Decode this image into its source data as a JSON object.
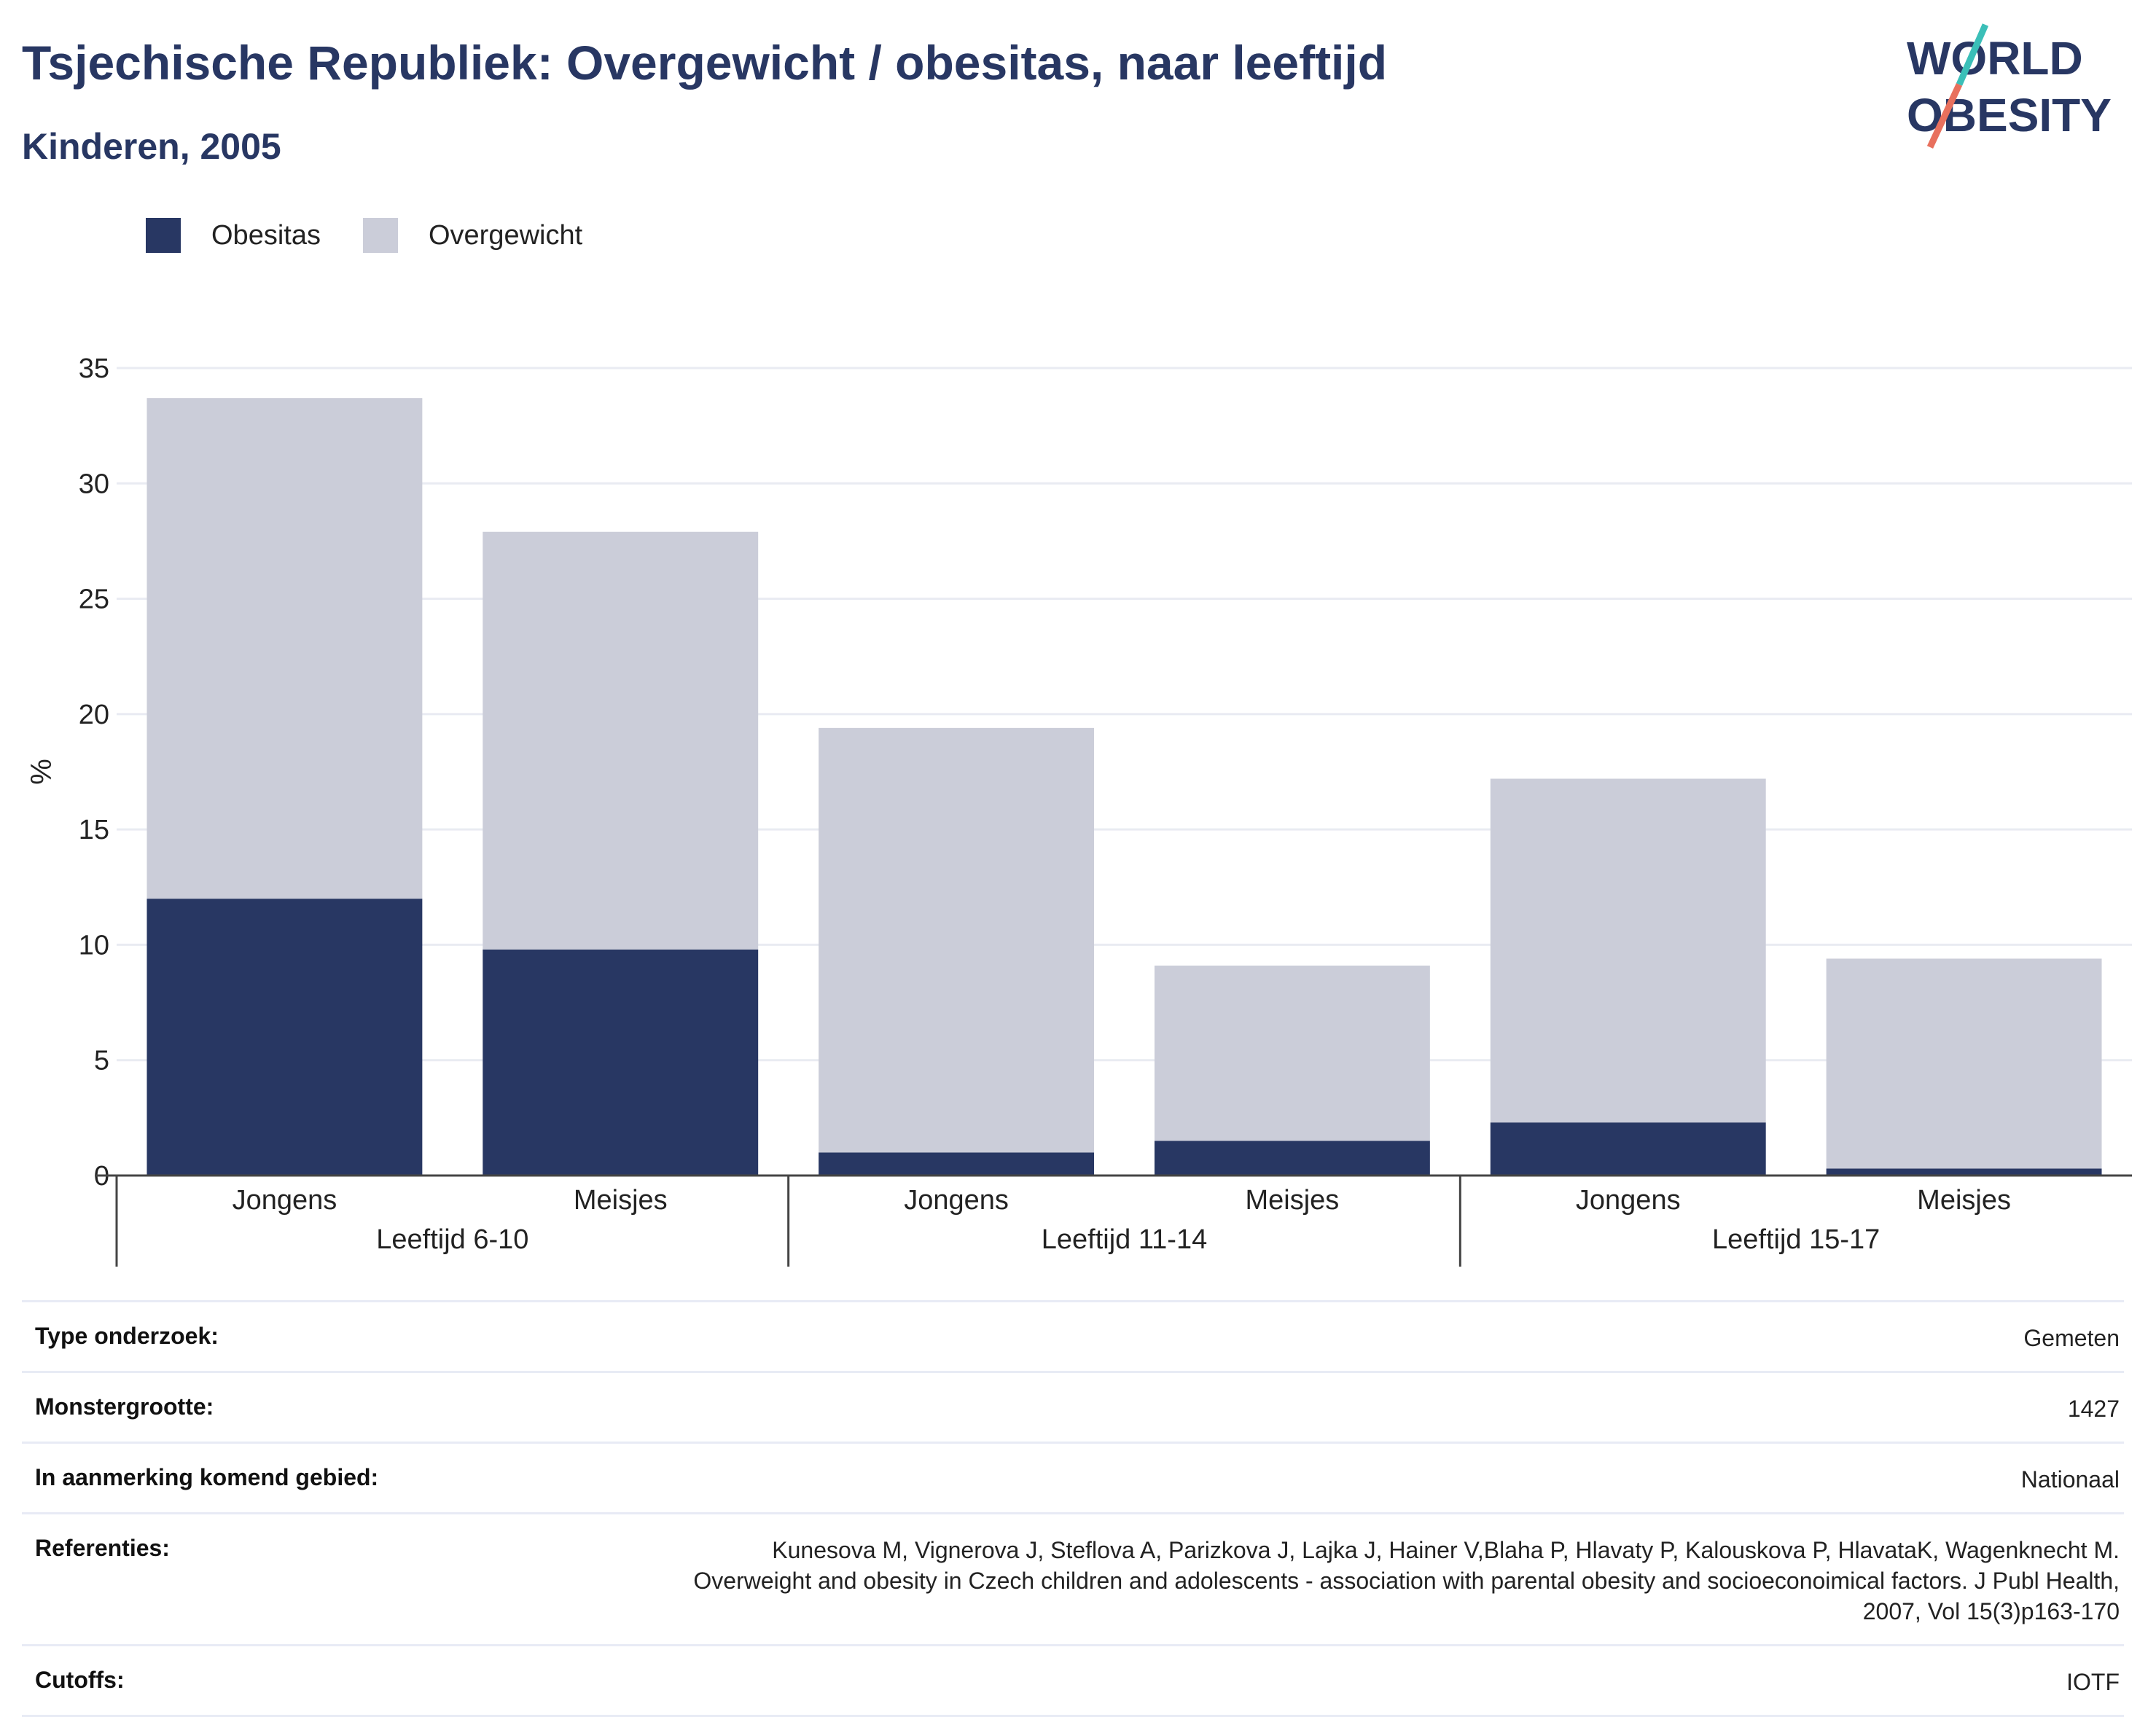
{
  "header": {
    "title": "Tsjechische Republiek: Overgewicht / obesitas, naar leeftijd",
    "subtitle": "Kinderen, 2005"
  },
  "logo": {
    "line1": "WORLD",
    "line2": "OBESITY"
  },
  "colors": {
    "obesitas": "#283763",
    "overgewicht": "#cbcdd9",
    "title": "#283763",
    "logo_teal": "#3bbfb8",
    "logo_coral": "#e8705d"
  },
  "legend": [
    {
      "label": "Obesitas",
      "color": "#283763"
    },
    {
      "label": "Overgewicht",
      "color": "#cbcdd9"
    }
  ],
  "chart_data": {
    "type": "bar",
    "stacked": true,
    "ylabel": "%",
    "ylim": [
      0,
      35
    ],
    "yticks": [
      0,
      5,
      10,
      15,
      20,
      25,
      30,
      35
    ],
    "grid": true,
    "legend_position": "top-left",
    "groups": [
      {
        "label": "Leeftijd 6-10",
        "categories": [
          "Jongens",
          "Meisjes"
        ]
      },
      {
        "label": "Leeftijd 11-14",
        "categories": [
          "Jongens",
          "Meisjes"
        ]
      },
      {
        "label": "Leeftijd 15-17",
        "categories": [
          "Jongens",
          "Meisjes"
        ]
      }
    ],
    "series": [
      {
        "name": "Obesitas",
        "color": "#283763",
        "values": [
          12.0,
          9.8,
          1.0,
          1.5,
          2.3,
          0.3
        ]
      },
      {
        "name": "Overgewicht",
        "color": "#cbcdd9",
        "values": [
          21.7,
          18.1,
          18.4,
          7.6,
          14.9,
          9.1
        ]
      }
    ]
  },
  "info": [
    {
      "key": "Type onderzoek:",
      "value": "Gemeten"
    },
    {
      "key": "Monstergrootte:",
      "value": "1427"
    },
    {
      "key": "In aanmerking komend gebied:",
      "value": "Nationaal"
    },
    {
      "key": "Referenties:",
      "value": "Kunesova M, Vignerova J, Steflova A, Parizkova J, Lajka J, Hainer V,Blaha P, Hlavaty P, Kalouskova P, HlavataK, Wagenknecht M. Overweight and obesity in Czech children and adolescents - association with parental obesity and socioeconoimical factors. J Publ Health, 2007, Vol 15(3)p163-170"
    },
    {
      "key": "Cutoffs:",
      "value": "IOTF"
    }
  ]
}
